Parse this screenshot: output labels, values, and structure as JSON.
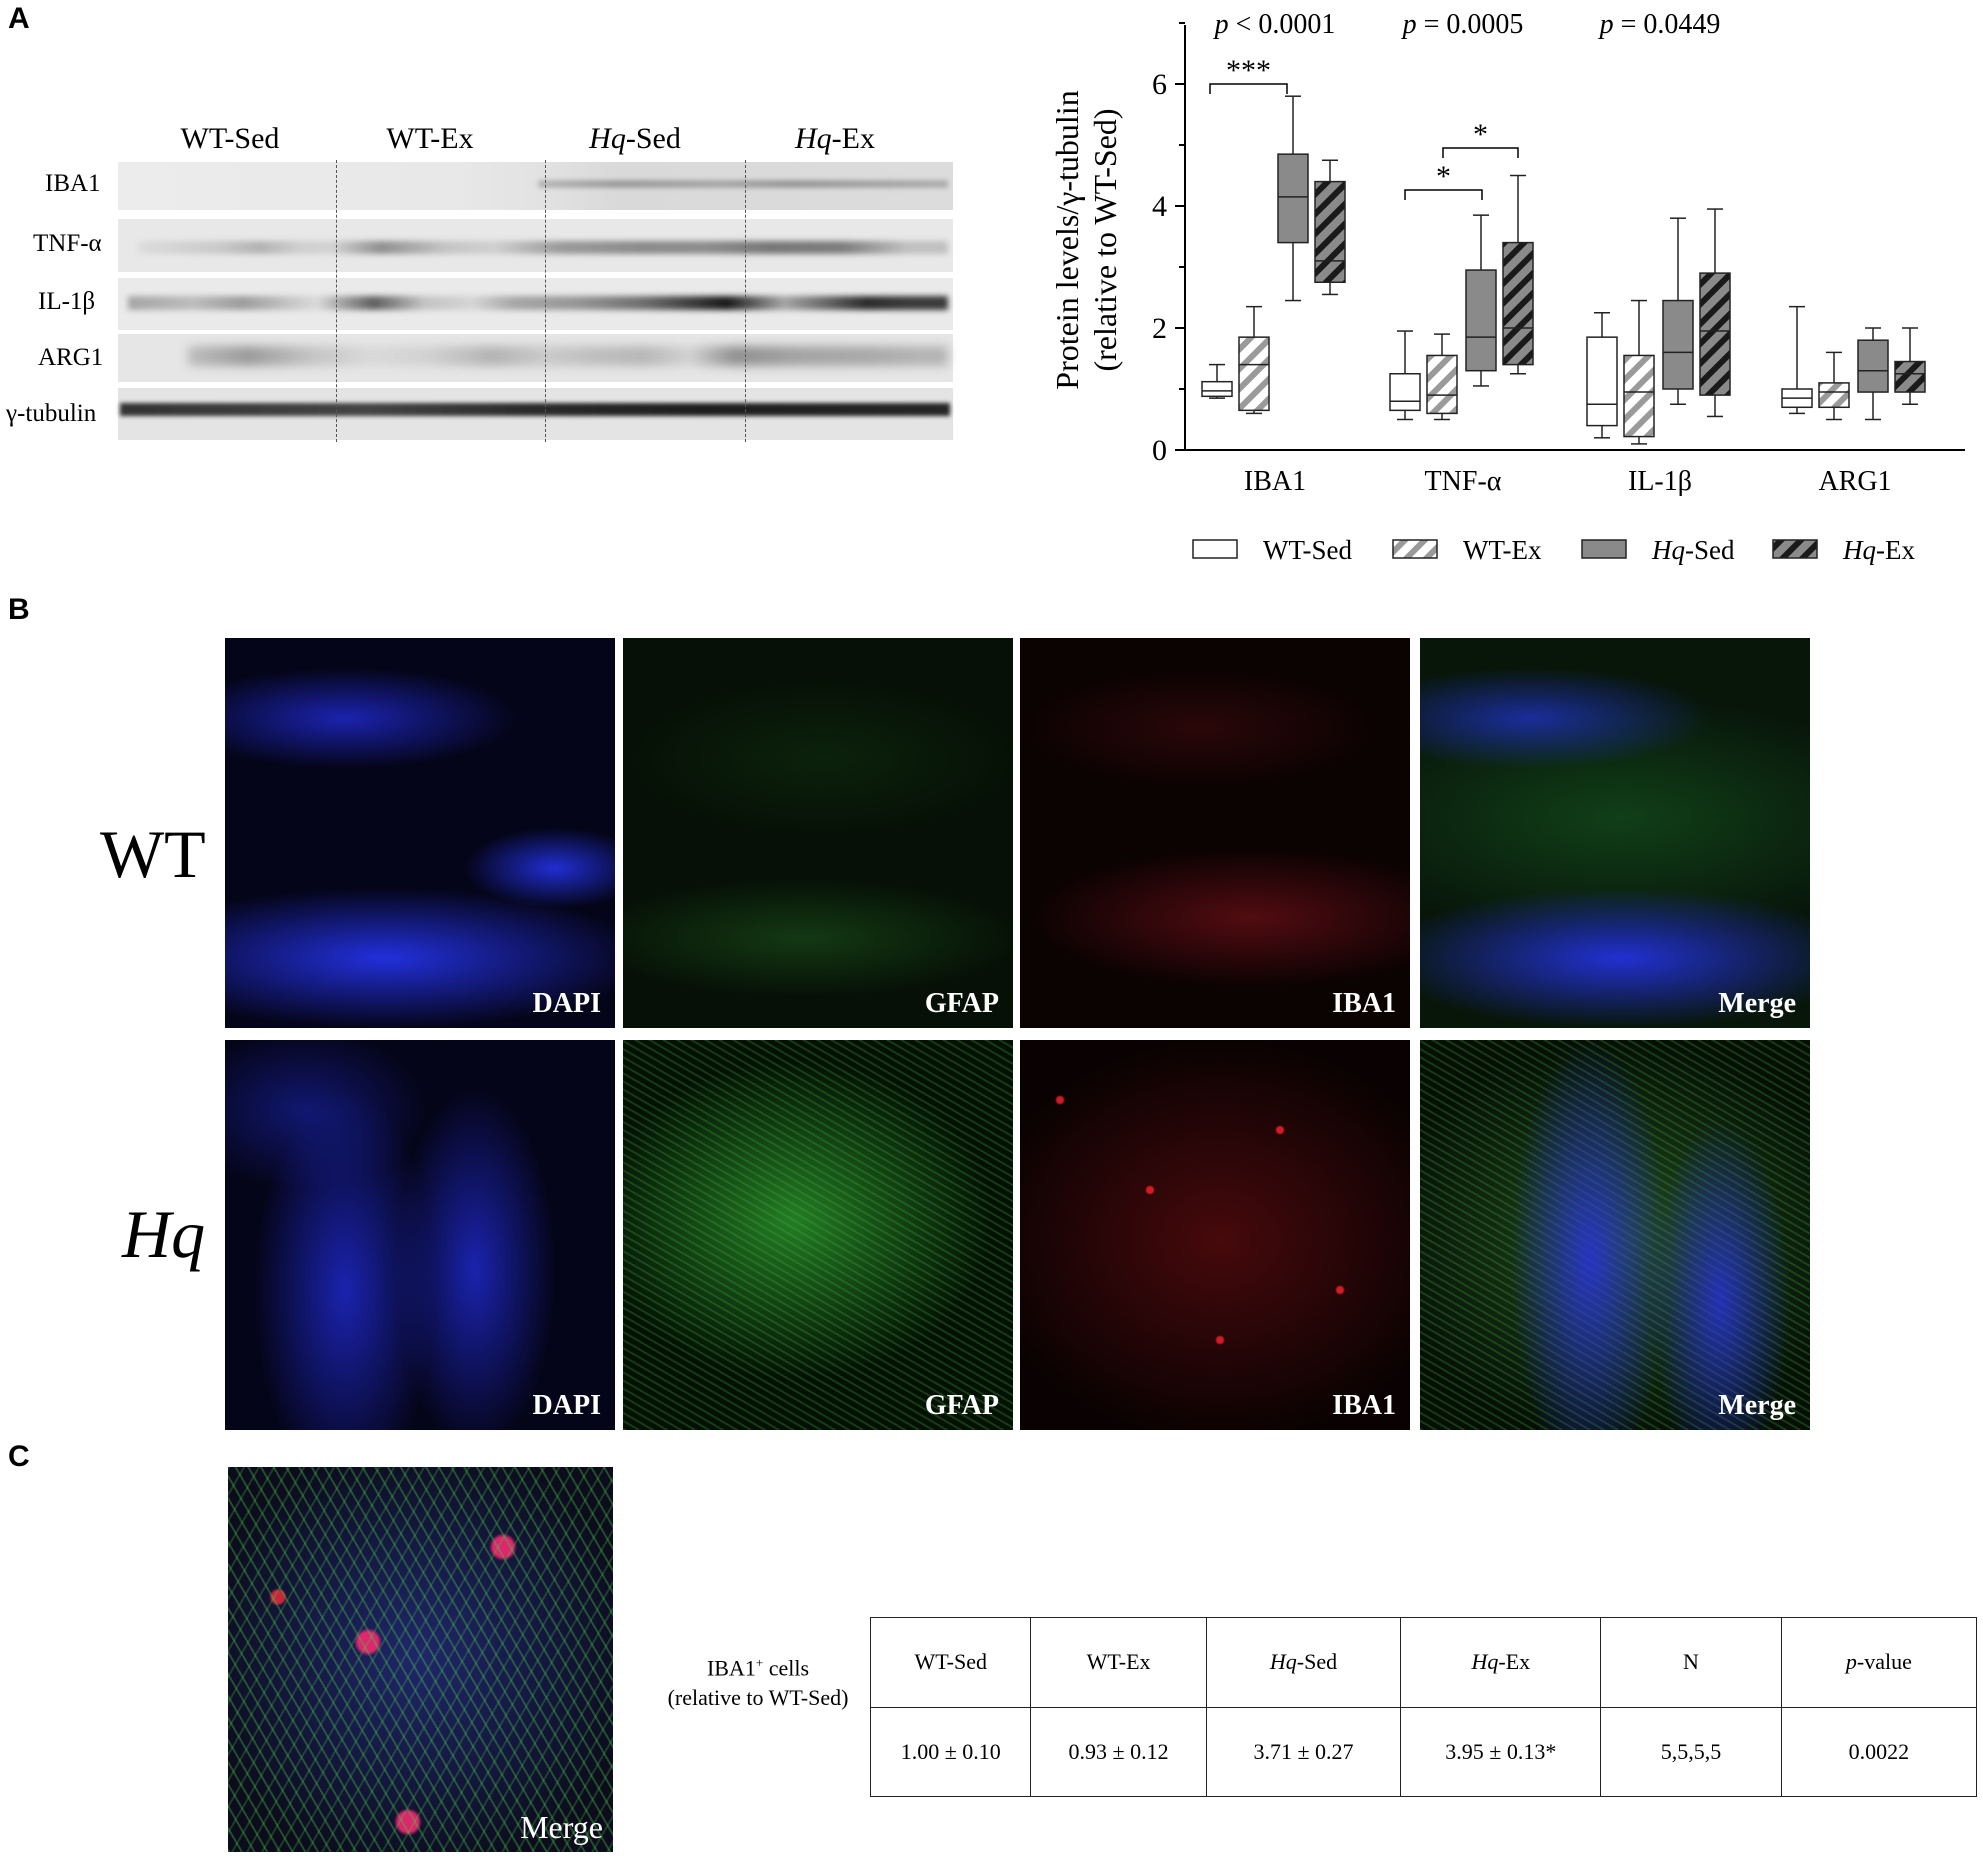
{
  "panels": {
    "a": "A",
    "b": "B",
    "c": "C"
  },
  "blot": {
    "groups": [
      {
        "prefix": "WT",
        "suffix": "-Sed"
      },
      {
        "prefix": "WT",
        "suffix": "-Ex"
      },
      {
        "prefix": "Hq",
        "suffix": "-Sed"
      },
      {
        "prefix": "Hq",
        "suffix": "-Ex"
      }
    ],
    "rows": [
      "IBA1",
      "TNF-α",
      "IL-1β",
      "ARG1",
      "γ-tubulin"
    ]
  },
  "chart_data": {
    "type": "box",
    "ylabel_line1": "Protein levels/γ-tubulin",
    "ylabel_line2": "(relative to WT-Sed)",
    "ylim": [
      0,
      7
    ],
    "yticks": [
      "0",
      "2",
      "4",
      "6"
    ],
    "categories": [
      "IBA1",
      "TNF-α",
      "IL-1β",
      "ARG1"
    ],
    "pvalues": [
      {
        "p": "p",
        "rest": " < 0.0001"
      },
      {
        "p": "p",
        "rest": " = 0.0005"
      },
      {
        "p": "p",
        "rest": " = 0.0449"
      }
    ],
    "significance": [
      "***",
      "*",
      "*"
    ],
    "legend": [
      {
        "prefix": "WT",
        "suffix": "-Sed"
      },
      {
        "prefix": "WT",
        "suffix": "-Ex"
      },
      {
        "prefix": "Hq",
        "suffix": "-Sed"
      },
      {
        "prefix": "Hq",
        "suffix": "-Ex"
      }
    ],
    "series": [
      {
        "fill": "#ffffff",
        "hatch": false,
        "boxes": [
          {
            "min": 0.85,
            "q1": 0.88,
            "median": 0.97,
            "q3": 1.12,
            "max": 1.4
          },
          {
            "min": 0.5,
            "q1": 0.65,
            "median": 0.8,
            "q3": 1.25,
            "max": 1.95
          },
          {
            "min": 0.2,
            "q1": 0.4,
            "median": 0.75,
            "q3": 1.85,
            "max": 2.25
          },
          {
            "min": 0.6,
            "q1": 0.7,
            "median": 0.85,
            "q3": 1.0,
            "max": 2.35
          }
        ]
      },
      {
        "fill": "#ffffff",
        "hatch": true,
        "hatchColor": "#9a9a9a",
        "boxes": [
          {
            "min": 0.6,
            "q1": 0.65,
            "median": 1.4,
            "q3": 1.85,
            "max": 2.35
          },
          {
            "min": 0.5,
            "q1": 0.6,
            "median": 0.9,
            "q3": 1.55,
            "max": 1.9
          },
          {
            "min": 0.1,
            "q1": 0.22,
            "median": 0.95,
            "q3": 1.55,
            "max": 2.45
          },
          {
            "min": 0.5,
            "q1": 0.7,
            "median": 0.95,
            "q3": 1.1,
            "max": 1.6
          }
        ]
      },
      {
        "fill": "#8a8a8a",
        "hatch": false,
        "boxes": [
          {
            "min": 2.45,
            "q1": 3.4,
            "median": 4.15,
            "q3": 4.85,
            "max": 5.8
          },
          {
            "min": 1.05,
            "q1": 1.3,
            "median": 1.85,
            "q3": 2.95,
            "max": 3.85
          },
          {
            "min": 0.75,
            "q1": 1.0,
            "median": 1.6,
            "q3": 2.45,
            "max": 3.8
          },
          {
            "min": 0.5,
            "q1": 0.95,
            "median": 1.3,
            "q3": 1.8,
            "max": 2.0
          }
        ]
      },
      {
        "fill": "#8a8a8a",
        "hatch": true,
        "hatchColor": "#1a1a1a",
        "boxes": [
          {
            "min": 2.55,
            "q1": 2.75,
            "median": 3.1,
            "q3": 4.4,
            "max": 4.75
          },
          {
            "min": 1.25,
            "q1": 1.4,
            "median": 2.0,
            "q3": 3.4,
            "max": 4.5
          },
          {
            "min": 0.55,
            "q1": 0.9,
            "median": 1.95,
            "q3": 2.9,
            "max": 3.95
          },
          {
            "min": 0.75,
            "q1": 0.95,
            "median": 1.25,
            "q3": 1.45,
            "max": 2.0
          }
        ]
      }
    ]
  },
  "micrographs": {
    "row_labels": [
      "WT",
      "Hq"
    ],
    "channel_labels": [
      "DAPI",
      "GFAP",
      "IBA1",
      "Merge"
    ]
  },
  "panel_c": {
    "image_label": "Merge",
    "row_label_line1_main": "IBA1",
    "row_label_line1_sup": "+",
    "row_label_line1_rest": " cells",
    "row_label_line2": "(relative to WT-Sed)",
    "headers": [
      {
        "prefix": "",
        "suffix": "WT-Sed"
      },
      {
        "prefix": "",
        "suffix": "WT-Ex"
      },
      {
        "prefix": "Hq",
        "suffix": "-Sed"
      },
      {
        "prefix": "Hq",
        "suffix": "-Ex"
      },
      {
        "prefix": "",
        "suffix": "N"
      },
      {
        "prefix": "p",
        "suffix": "-value"
      }
    ],
    "values": [
      "1.00 ± 0.10",
      "0.93 ± 0.12",
      "3.71 ± 0.27",
      "3.95 ± 0.13*",
      "5,5,5,5",
      "0.0022"
    ]
  }
}
